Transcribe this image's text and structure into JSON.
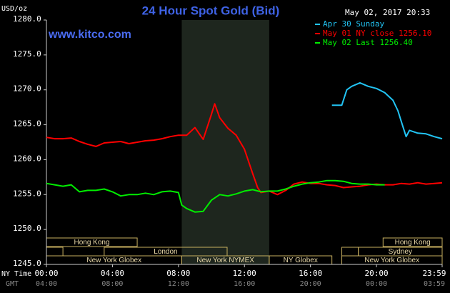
{
  "chart_data": {
    "type": "line",
    "title": "24 Hour Spot Gold (Bid)",
    "y_label": "USD/oz",
    "watermark": "www.kitco.com",
    "timestamp": "May 02, 2017 20:33",
    "x_label": "NY Time",
    "x2_label": "GMT",
    "xlim": [
      0,
      23.98
    ],
    "xticks": [
      {
        "value": 0,
        "label": "00:00"
      },
      {
        "value": 4,
        "label": "04:00"
      },
      {
        "value": 8,
        "label": "08:00"
      },
      {
        "value": 12,
        "label": "12:00"
      },
      {
        "value": 16,
        "label": "16:00"
      },
      {
        "value": 20,
        "label": "20:00"
      },
      {
        "value": 23.98,
        "label": "23:59"
      }
    ],
    "x2ticks": [
      {
        "value": 0,
        "label": "04:00"
      },
      {
        "value": 4,
        "label": "08:00"
      },
      {
        "value": 8,
        "label": "12:00"
      },
      {
        "value": 12,
        "label": "16:00"
      },
      {
        "value": 16,
        "label": "20:00"
      },
      {
        "value": 20,
        "label": "00:00"
      },
      {
        "value": 23.98,
        "label": "03:59"
      }
    ],
    "ylim": [
      1245,
      1280
    ],
    "yticks": [
      {
        "value": 1245,
        "label": "1245.0"
      },
      {
        "value": 1250,
        "label": "1250.0"
      },
      {
        "value": 1255,
        "label": "1255.0"
      },
      {
        "value": 1260,
        "label": "1260.0"
      },
      {
        "value": 1265,
        "label": "1265.0"
      },
      {
        "value": 1270,
        "label": "1270.0"
      },
      {
        "value": 1275,
        "label": "1275.0"
      },
      {
        "value": 1280,
        "label": "1280.0"
      }
    ],
    "shaded_range": [
      8.2,
      13.5
    ],
    "series": [
      {
        "name": "Apr 30 Sunday",
        "color": "#22c4f4",
        "x": [
          17.3,
          17.9,
          18.2,
          18.5,
          19,
          19.5,
          20,
          20.5,
          21,
          21.3,
          21.5,
          21.8,
          22,
          22.5,
          23,
          23.5,
          23.98
        ],
        "values": [
          1267.8,
          1267.8,
          1270,
          1270.5,
          1271,
          1270.5,
          1270.2,
          1269.6,
          1268.5,
          1267,
          1265.5,
          1263.3,
          1264.2,
          1263.8,
          1263.7,
          1263.3,
          1263
        ]
      },
      {
        "name": "May 01 NY close 1256.10",
        "color": "#ff0000",
        "x": [
          0,
          0.5,
          1,
          1.5,
          2,
          2.5,
          3,
          3.5,
          4,
          4.5,
          5,
          5.5,
          6,
          6.5,
          7,
          7.5,
          8,
          8.5,
          9,
          9.5,
          10,
          10.2,
          10.5,
          11,
          11.5,
          12,
          12.5,
          12.8,
          13,
          13.5,
          14,
          14.5,
          15,
          15.5,
          16,
          16.5,
          17,
          17.5,
          18,
          18.5,
          19,
          19.5,
          20,
          20.5,
          21,
          21.5,
          22,
          22.5,
          23,
          23.5,
          23.98
        ],
        "values": [
          1263.2,
          1263,
          1263,
          1263.1,
          1262.6,
          1262.2,
          1261.9,
          1262.4,
          1262.5,
          1262.6,
          1262.3,
          1262.5,
          1262.7,
          1262.8,
          1263,
          1263.3,
          1263.5,
          1263.5,
          1264.6,
          1262.9,
          1266.5,
          1268,
          1266,
          1264.5,
          1263.5,
          1261.5,
          1258,
          1256,
          1255.3,
          1255.5,
          1255,
          1255.6,
          1256.5,
          1256.8,
          1256.6,
          1256.6,
          1256.4,
          1256.3,
          1256,
          1256.1,
          1256.2,
          1256.4,
          1256.5,
          1256.4,
          1256.4,
          1256.6,
          1256.5,
          1256.7,
          1256.5,
          1256.6,
          1256.7
        ]
      },
      {
        "name": "May 02 Last 1256.40",
        "color": "#00ee00",
        "x": [
          0,
          0.5,
          1,
          1.5,
          2,
          2.5,
          3,
          3.5,
          4,
          4.5,
          5,
          5.5,
          6,
          6.5,
          7,
          7.5,
          8,
          8.2,
          8.5,
          9,
          9.5,
          10,
          10.5,
          11,
          11.5,
          12,
          12.5,
          13,
          13.5,
          14,
          14.5,
          15,
          15.5,
          16,
          16.5,
          17,
          17.5,
          18,
          18.5,
          19,
          19.5,
          20,
          20.5
        ],
        "values": [
          1256.6,
          1256.4,
          1256.2,
          1256.4,
          1255.4,
          1255.6,
          1255.6,
          1255.8,
          1255.4,
          1254.8,
          1255,
          1255,
          1255.2,
          1255,
          1255.4,
          1255.5,
          1255.3,
          1253.5,
          1253,
          1252.5,
          1252.6,
          1254.2,
          1255,
          1254.8,
          1255.1,
          1255.5,
          1255.7,
          1255.4,
          1255.5,
          1255.5,
          1255.8,
          1256.2,
          1256.5,
          1256.7,
          1256.8,
          1257,
          1257,
          1256.9,
          1256.6,
          1256.5,
          1256.5,
          1256.4,
          1256.4
        ]
      }
    ],
    "sessions": [
      {
        "name": "Hong Kong",
        "row": 0,
        "start": 0,
        "end": 5.5
      },
      {
        "name": "Hong Kong",
        "row": 0,
        "start": 20.4,
        "end": 23.98
      },
      {
        "name": null,
        "row": 1,
        "start": 0,
        "end": 1
      },
      {
        "name": "London",
        "row": 1,
        "start": 3.5,
        "end": 10.95
      },
      {
        "name": null,
        "row": 1,
        "start": 17.9,
        "end": 18.9
      },
      {
        "name": "Sydney",
        "row": 1,
        "start": 18.9,
        "end": 23.98
      },
      {
        "name": "New York Globex",
        "row": 2,
        "start": 0,
        "end": 8.2
      },
      {
        "name": "New York NYMEX",
        "row": 2,
        "start": 8.2,
        "end": 13.5
      },
      {
        "name": "NY Globex",
        "row": 2,
        "start": 13.5,
        "end": 17.3
      },
      {
        "name": "New York Globex",
        "row": 2,
        "start": 17.9,
        "end": 23.98
      }
    ]
  }
}
